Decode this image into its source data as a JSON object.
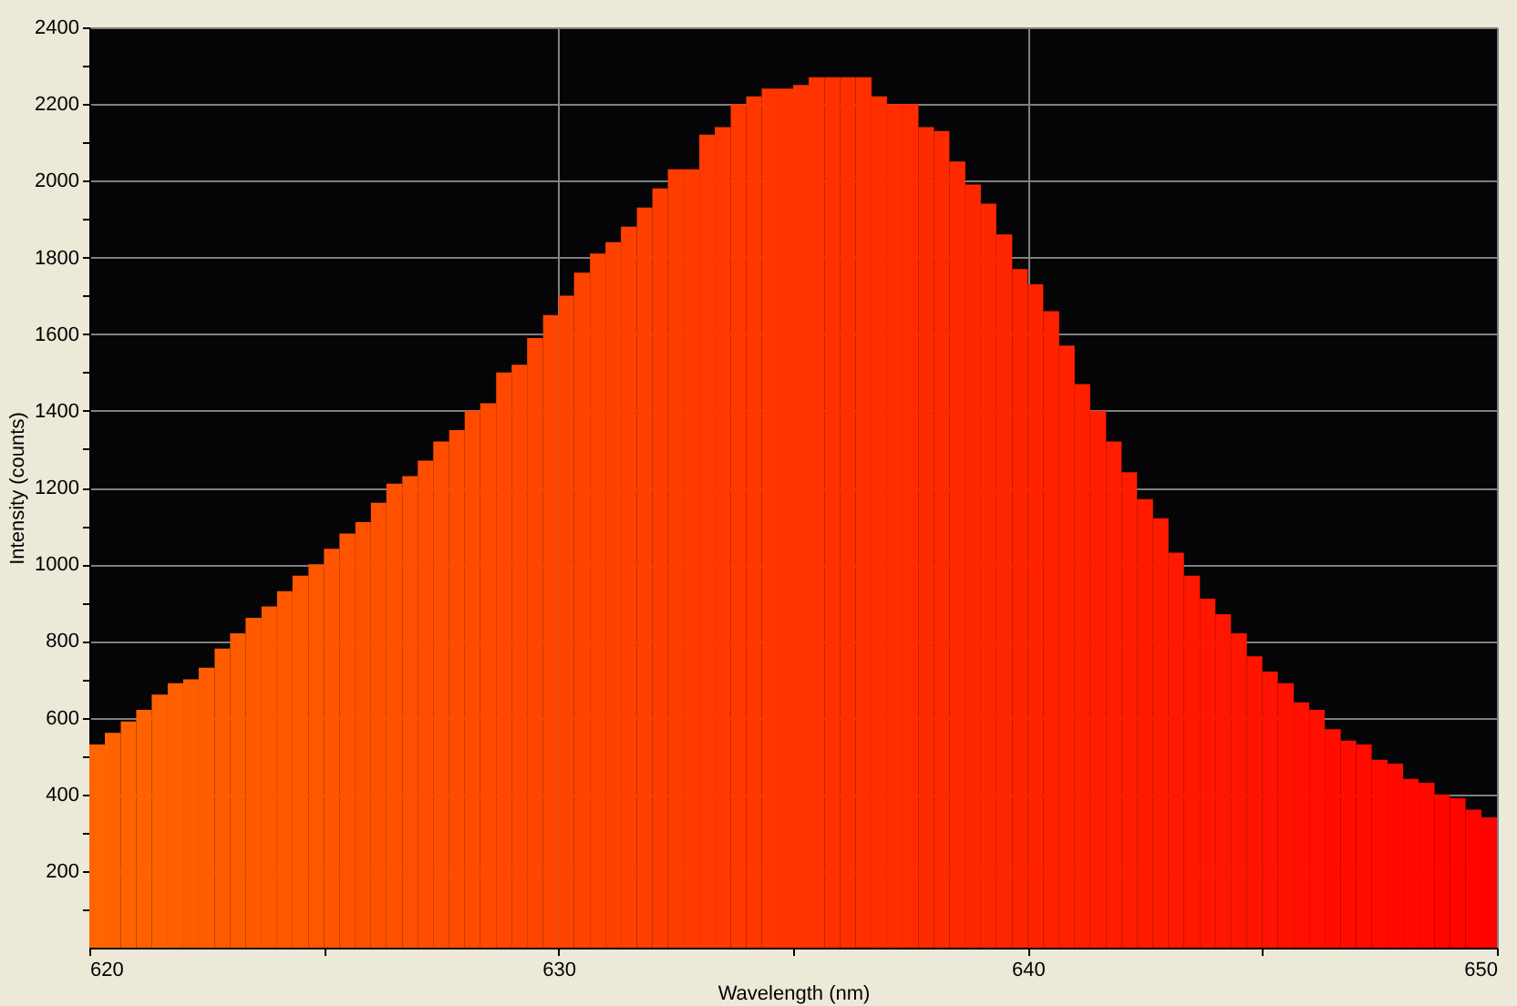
{
  "chart_data": {
    "type": "histogram",
    "xlabel": "Wavelength (nm)",
    "ylabel": "Intensity (counts)",
    "bins": [
      620,
      620.33,
      620.67,
      621,
      621.33,
      621.67,
      622,
      622.33,
      622.67,
      623,
      623.33,
      623.67,
      624,
      624.33,
      624.67,
      625,
      625.33,
      625.67,
      626,
      626.33,
      626.67,
      627,
      627.33,
      627.67,
      628,
      628.33,
      628.67,
      629,
      629.33,
      629.67,
      630,
      630.33,
      630.67,
      631,
      631.33,
      631.67,
      632,
      632.33,
      632.67,
      633,
      633.33,
      633.67,
      634,
      634.33,
      634.67,
      635,
      635.33,
      635.67,
      636,
      636.33,
      636.67,
      637,
      637.33,
      637.67,
      638,
      638.33,
      638.67,
      639,
      639.33,
      639.67,
      640,
      640.33,
      640.67,
      641,
      641.33,
      641.67,
      642,
      642.33,
      642.67,
      643,
      643.33,
      643.67,
      644,
      644.33,
      644.67,
      645,
      645.33,
      645.67,
      646,
      646.33,
      646.67,
      647,
      647.33,
      647.67,
      648,
      648.33,
      648.67,
      649,
      649.33,
      649.67,
      650
    ],
    "values": [
      530,
      560,
      590,
      620,
      660,
      690,
      700,
      730,
      780,
      820,
      860,
      890,
      930,
      970,
      1000,
      1040,
      1080,
      1110,
      1160,
      1210,
      1230,
      1270,
      1320,
      1350,
      1400,
      1420,
      1500,
      1520,
      1590,
      1650,
      1700,
      1760,
      1810,
      1840,
      1880,
      1930,
      1980,
      2030,
      2030,
      2120,
      2140,
      2200,
      2220,
      2240,
      2240,
      2250,
      2270,
      2270,
      2270,
      2270,
      2220,
      2200,
      2200,
      2140,
      2130,
      2050,
      1990,
      1940,
      1860,
      1770,
      1730,
      1660,
      1570,
      1470,
      1400,
      1320,
      1240,
      1170,
      1120,
      1030,
      970,
      910,
      870,
      820,
      760,
      720,
      690,
      640,
      620,
      570,
      540,
      530,
      490,
      480,
      440,
      430,
      400,
      390,
      360,
      340
    ],
    "colors": [
      "#ff6500",
      "#ff6400",
      "#ff6300",
      "#ff6200",
      "#ff6100",
      "#ff6000",
      "#ff5e00",
      "#ff5d00",
      "#ff5c00",
      "#ff5b00",
      "#ff5a00",
      "#ff5900",
      "#ff5800",
      "#ff5700",
      "#ff5600",
      "#ff5500",
      "#ff5300",
      "#ff5200",
      "#ff5100",
      "#ff5000",
      "#ff4f00",
      "#ff4e00",
      "#ff4d00",
      "#ff4c00",
      "#ff4b00",
      "#ff4a00",
      "#ff4800",
      "#ff4700",
      "#ff4600",
      "#ff4500",
      "#ff4400",
      "#ff4300",
      "#ff4200",
      "#ff4100",
      "#ff4000",
      "#ff3f00",
      "#ff3d00",
      "#ff3c00",
      "#ff3b00",
      "#ff3a00",
      "#ff3900",
      "#ff3800",
      "#ff3700",
      "#ff3600",
      "#ff3500",
      "#ff3400",
      "#ff3200",
      "#ff3100",
      "#ff3000",
      "#ff2f00",
      "#ff2e00",
      "#ff2d00",
      "#ff2c00",
      "#ff2b00",
      "#ff2a00",
      "#ff2900",
      "#ff2700",
      "#ff2600",
      "#ff2500",
      "#ff2400",
      "#ff2300",
      "#ff2200",
      "#ff2100",
      "#ff2000",
      "#ff1f00",
      "#ff1e00",
      "#ff1c00",
      "#ff1b00",
      "#ff1a00",
      "#ff1900",
      "#ff1800",
      "#ff1700",
      "#ff1600",
      "#ff1500",
      "#ff1400",
      "#ff1300",
      "#ff1100",
      "#ff1000",
      "#ff0f00",
      "#ff0e00",
      "#ff0d00",
      "#ff0c00",
      "#ff0b00",
      "#ff0a00",
      "#ff0900",
      "#ff0800",
      "#ff0600",
      "#ff0500",
      "#ff0400",
      "#ff0300"
    ],
    "xlim": [
      620,
      650
    ],
    "xticks": [
      620,
      {
        "value": 625,
        "label": null
      },
      630,
      {
        "value": 635,
        "label": null
      },
      640,
      {
        "value": 645,
        "label": null
      },
      650
    ],
    "ylim": [
      0,
      2400
    ],
    "yticks": [
      {
        "value": 100,
        "label": null
      },
      200,
      {
        "value": 300,
        "label": null
      },
      400,
      {
        "value": 500,
        "label": null
      },
      600,
      {
        "value": 700,
        "label": null
      },
      800,
      {
        "value": 900,
        "label": null
      },
      1000,
      {
        "value": 1100,
        "label": null
      },
      1200,
      {
        "value": 1300,
        "label": null
      },
      1400,
      {
        "value": 1500,
        "label": null
      },
      1600,
      {
        "value": 1700,
        "label": null
      },
      1800,
      {
        "value": 1900,
        "label": null
      },
      2000,
      {
        "value": 2100,
        "label": null
      },
      2200,
      {
        "value": 2300,
        "label": null
      },
      2400
    ],
    "grid": true
  }
}
